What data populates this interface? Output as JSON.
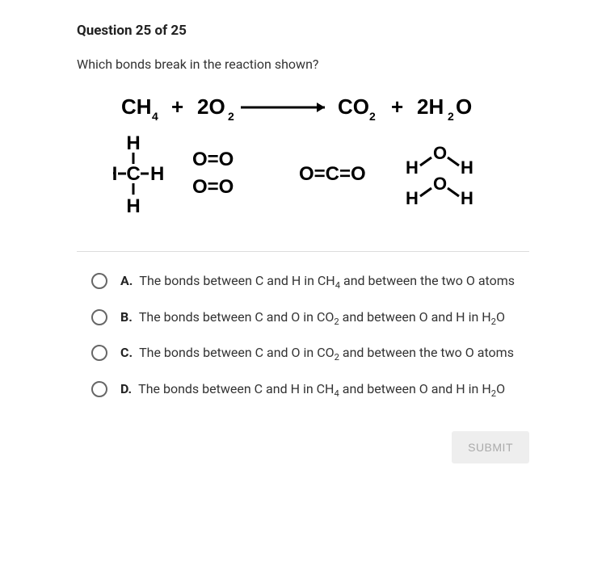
{
  "question": {
    "number_label": "Question 25 of 25",
    "text": "Which bonds break in the reaction shown?"
  },
  "diagram": {
    "equation": {
      "reactant1": "CH",
      "reactant1_sub": "4",
      "plus1": "+",
      "reactant2_coef": "2",
      "reactant2": "O",
      "reactant2_sub": "2",
      "arrow": "→",
      "product1": "CO",
      "product1_sub": "2",
      "plus2": "+",
      "product2_coef": "2",
      "product2": "H",
      "product2_sub": "2",
      "product2_tail": "O"
    },
    "structures": {
      "methane_center": "C",
      "methane_H": "H",
      "o2": "O=O",
      "co2": "O=C=O",
      "h2o_H": "H",
      "h2o_O": "O"
    },
    "colors": {
      "text": "#000000",
      "equation_font_size": 26,
      "structure_font_size": 22
    }
  },
  "options": [
    {
      "letter": "A.",
      "html": "The bonds between C and H in CH<sub>4</sub> and between the two O atoms"
    },
    {
      "letter": "B.",
      "html": "The bonds between C and O in CO<sub>2</sub> and between O and H in H<sub>2</sub>O"
    },
    {
      "letter": "C.",
      "html": "The bonds between C and O in CO<sub>2</sub> and between the two O atoms"
    },
    {
      "letter": "D.",
      "html": "The bonds between C and H in CH<sub>4</sub> and between O and H in H<sub>2</sub>O"
    }
  ],
  "submit_label": "SUBMIT"
}
